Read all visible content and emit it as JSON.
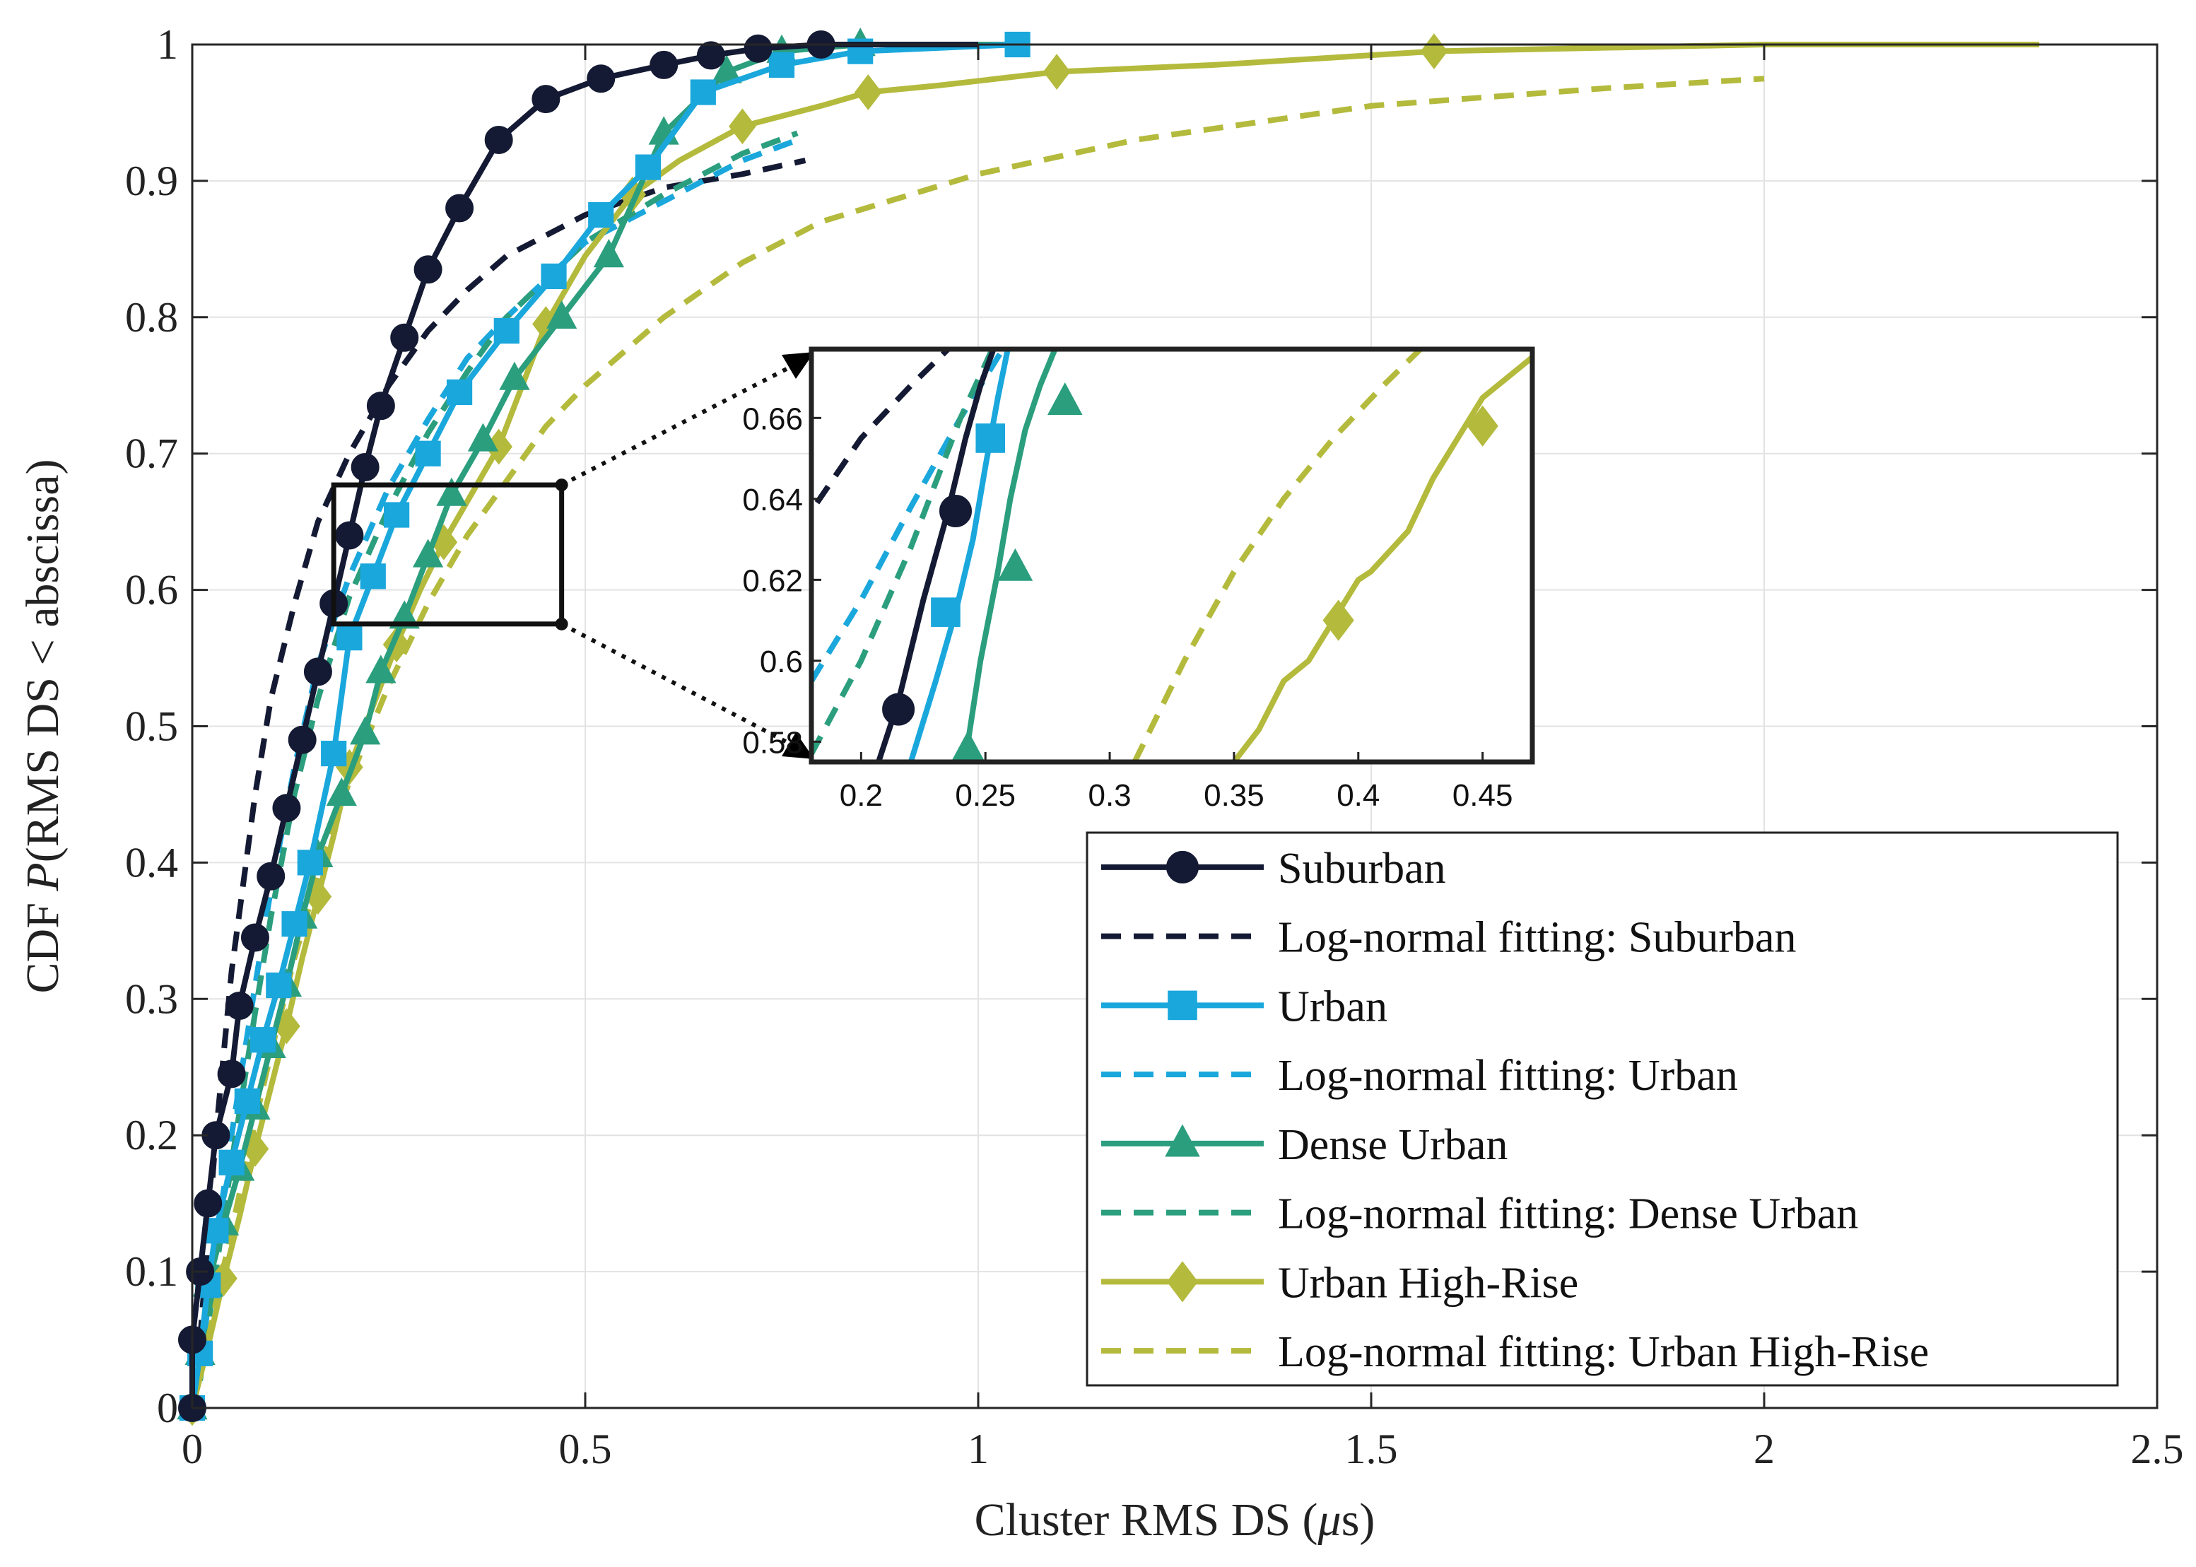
{
  "chart_data": {
    "type": "line",
    "title": "",
    "xlabel_main": "Cluster RMS DS (",
    "xlabel_mu": "μ",
    "xlabel_unit": "s)",
    "ylabel_prefix": "CDF ",
    "ylabel_p": "P",
    "ylabel_suffix": "(RMS DS < abscissa)",
    "xlim": [
      0,
      2.5
    ],
    "ylim": [
      0,
      1
    ],
    "xticks": [
      0,
      0.5,
      1,
      1.5,
      2,
      2.5
    ],
    "xtick_labels": [
      "0",
      "0.5",
      "1",
      "1.5",
      "2",
      "2.5"
    ],
    "yticks": [
      0,
      0.1,
      0.2,
      0.3,
      0.4,
      0.5,
      0.6,
      0.7,
      0.8,
      0.9,
      1
    ],
    "ytick_labels": [
      "0",
      "0.1",
      "0.2",
      "0.3",
      "0.4",
      "0.5",
      "0.6",
      "0.7",
      "0.8",
      "0.9",
      "1"
    ],
    "grid": true,
    "legend_position": "bottom-right",
    "series": [
      {
        "name": "Suburban",
        "style": "solid",
        "marker": "circle",
        "color": "#141a33",
        "x": [
          0.0,
          0.0,
          0.01,
          0.02,
          0.03,
          0.05,
          0.06,
          0.08,
          0.1,
          0.12,
          0.14,
          0.16,
          0.18,
          0.2,
          0.22,
          0.24,
          0.27,
          0.3,
          0.34,
          0.39,
          0.45,
          0.52,
          0.6,
          0.66,
          0.72,
          0.8,
          1.0
        ],
        "y": [
          0.0,
          0.05,
          0.1,
          0.15,
          0.2,
          0.245,
          0.295,
          0.345,
          0.39,
          0.44,
          0.49,
          0.54,
          0.59,
          0.64,
          0.69,
          0.735,
          0.785,
          0.835,
          0.88,
          0.93,
          0.96,
          0.975,
          0.985,
          0.992,
          0.997,
          1.0,
          1.0
        ]
      },
      {
        "name": "Log-normal fitting: Suburban",
        "style": "dashed",
        "marker": "none",
        "color": "#141a33",
        "x": [
          0.01,
          0.03,
          0.05,
          0.08,
          0.1,
          0.13,
          0.16,
          0.2,
          0.25,
          0.3,
          0.35,
          0.4,
          0.5,
          0.6,
          0.7,
          0.78
        ],
        "y": [
          0.05,
          0.2,
          0.32,
          0.45,
          0.52,
          0.59,
          0.65,
          0.7,
          0.75,
          0.79,
          0.82,
          0.845,
          0.875,
          0.895,
          0.905,
          0.915
        ]
      },
      {
        "name": "Urban",
        "style": "solid",
        "marker": "square",
        "color": "#1aa7dc",
        "x": [
          0.0,
          0.01,
          0.02,
          0.03,
          0.05,
          0.07,
          0.09,
          0.11,
          0.13,
          0.15,
          0.18,
          0.2,
          0.23,
          0.26,
          0.3,
          0.34,
          0.4,
          0.46,
          0.52,
          0.58,
          0.65,
          0.75,
          0.85,
          1.05
        ],
        "y": [
          0.0,
          0.04,
          0.09,
          0.13,
          0.18,
          0.225,
          0.27,
          0.31,
          0.355,
          0.4,
          0.48,
          0.565,
          0.61,
          0.655,
          0.7,
          0.745,
          0.79,
          0.83,
          0.875,
          0.91,
          0.965,
          0.985,
          0.995,
          1.0
        ]
      },
      {
        "name": "Log-normal fitting: Urban",
        "style": "dashed",
        "marker": "none",
        "color": "#1aa7dc",
        "x": [
          0.01,
          0.03,
          0.05,
          0.08,
          0.1,
          0.13,
          0.16,
          0.2,
          0.25,
          0.3,
          0.35,
          0.4,
          0.5,
          0.6,
          0.7,
          0.77
        ],
        "y": [
          0.03,
          0.12,
          0.2,
          0.31,
          0.38,
          0.47,
          0.545,
          0.61,
          0.675,
          0.725,
          0.77,
          0.8,
          0.855,
          0.885,
          0.915,
          0.93
        ]
      },
      {
        "name": "Dense Urban",
        "style": "solid",
        "marker": "triangle",
        "color": "#2b9e7e",
        "x": [
          0.0,
          0.01,
          0.02,
          0.04,
          0.06,
          0.08,
          0.1,
          0.12,
          0.14,
          0.16,
          0.19,
          0.22,
          0.24,
          0.27,
          0.3,
          0.33,
          0.37,
          0.41,
          0.47,
          0.53,
          0.6,
          0.68,
          0.75,
          0.85,
          1.05
        ],
        "y": [
          0.0,
          0.04,
          0.09,
          0.135,
          0.175,
          0.22,
          0.265,
          0.31,
          0.36,
          0.405,
          0.45,
          0.495,
          0.54,
          0.58,
          0.625,
          0.67,
          0.71,
          0.755,
          0.8,
          0.845,
          0.935,
          0.98,
          0.995,
          1.0,
          1.0
        ]
      },
      {
        "name": "Log-normal fitting: Dense Urban",
        "style": "dashed",
        "marker": "none",
        "color": "#2b9e7e",
        "x": [
          0.01,
          0.03,
          0.05,
          0.08,
          0.1,
          0.13,
          0.16,
          0.2,
          0.25,
          0.3,
          0.35,
          0.4,
          0.5,
          0.6,
          0.7,
          0.77
        ],
        "y": [
          0.02,
          0.1,
          0.18,
          0.29,
          0.36,
          0.45,
          0.52,
          0.595,
          0.66,
          0.715,
          0.76,
          0.8,
          0.855,
          0.89,
          0.92,
          0.935
        ]
      },
      {
        "name": "Urban High-Rise",
        "style": "solid",
        "marker": "diamond",
        "color": "#b4ba3c",
        "x": [
          0.0,
          0.02,
          0.04,
          0.06,
          0.08,
          0.1,
          0.12,
          0.14,
          0.16,
          0.18,
          0.2,
          0.23,
          0.26,
          0.29,
          0.32,
          0.35,
          0.39,
          0.42,
          0.45,
          0.5,
          0.56,
          0.62,
          0.7,
          0.8,
          0.86,
          0.95,
          1.1,
          1.3,
          1.58,
          2.0,
          2.2,
          2.35
        ],
        "y": [
          0.0,
          0.045,
          0.095,
          0.14,
          0.19,
          0.235,
          0.28,
          0.33,
          0.375,
          0.42,
          0.47,
          0.515,
          0.56,
          0.6,
          0.635,
          0.665,
          0.705,
          0.75,
          0.795,
          0.845,
          0.89,
          0.915,
          0.94,
          0.955,
          0.965,
          0.97,
          0.98,
          0.985,
          0.995,
          1.0,
          1.0,
          1.0
        ]
      },
      {
        "name": "Log-normal fitting: Urban High-Rise",
        "style": "dashed",
        "marker": "none",
        "color": "#b4ba3c",
        "x": [
          0.02,
          0.05,
          0.08,
          0.1,
          0.13,
          0.16,
          0.2,
          0.25,
          0.3,
          0.35,
          0.4,
          0.45,
          0.5,
          0.6,
          0.7,
          0.8,
          1.0,
          1.2,
          1.5,
          1.8,
          2.0
        ],
        "y": [
          0.05,
          0.13,
          0.21,
          0.26,
          0.33,
          0.39,
          0.46,
          0.53,
          0.59,
          0.64,
          0.68,
          0.72,
          0.75,
          0.8,
          0.84,
          0.87,
          0.905,
          0.93,
          0.955,
          0.968,
          0.975
        ]
      }
    ],
    "inset": {
      "xlim": [
        0.18,
        0.47
      ],
      "ylim": [
        0.575,
        0.677
      ],
      "xticks": [
        0.2,
        0.25,
        0.3,
        0.35,
        0.4,
        0.45
      ],
      "xtick_labels": [
        "0.2",
        "0.25",
        "0.3",
        "0.35",
        "0.4",
        "0.45"
      ],
      "yticks": [
        0.58,
        0.6,
        0.62,
        0.64,
        0.66
      ],
      "ytick_labels": [
        "0.58",
        "0.6",
        "0.62",
        "0.64",
        "0.66"
      ],
      "series": [
        {
          "ref": "Log-normal fitting: Suburban",
          "x": [
            0.16,
            0.18,
            0.2,
            0.22,
            0.24
          ],
          "y": [
            0.61,
            0.637,
            0.655,
            0.668,
            0.68
          ]
        },
        {
          "ref": "Log-normal fitting: Urban",
          "x": [
            0.18,
            0.2,
            0.22,
            0.24,
            0.26
          ],
          "y": [
            0.595,
            0.615,
            0.638,
            0.66,
            0.68
          ]
        },
        {
          "ref": "Log-normal fitting: Dense Urban",
          "x": [
            0.18,
            0.2,
            0.22,
            0.24,
            0.255
          ],
          "y": [
            0.577,
            0.6,
            0.628,
            0.66,
            0.68
          ]
        },
        {
          "ref": "Suburban",
          "x": [
            0.207,
            0.215,
            0.225,
            0.235,
            0.242,
            0.248,
            0.255
          ],
          "y": [
            0.575,
            0.59,
            0.615,
            0.637,
            0.655,
            0.668,
            0.68
          ]
        },
        {
          "ref": "Urban",
          "x": [
            0.22,
            0.23,
            0.238,
            0.245,
            0.25,
            0.255,
            0.26
          ],
          "y": [
            0.575,
            0.595,
            0.612,
            0.63,
            0.648,
            0.665,
            0.68
          ]
        },
        {
          "ref": "Dense Urban",
          "x": [
            0.24,
            0.243,
            0.248,
            0.255,
            0.26,
            0.266,
            0.272,
            0.28
          ],
          "y": [
            0.575,
            0.58,
            0.6,
            0.622,
            0.64,
            0.657,
            0.668,
            0.68
          ]
        },
        {
          "ref": "Log-normal fitting: Urban High-Rise",
          "x": [
            0.31,
            0.33,
            0.35,
            0.37,
            0.39,
            0.41,
            0.43
          ],
          "y": [
            0.575,
            0.6,
            0.622,
            0.64,
            0.655,
            0.668,
            0.68
          ]
        },
        {
          "ref": "Urban High-Rise",
          "x": [
            0.35,
            0.36,
            0.37,
            0.38,
            0.39,
            0.4,
            0.405,
            0.42,
            0.43,
            0.45,
            0.47
          ],
          "y": [
            0.575,
            0.583,
            0.595,
            0.6,
            0.61,
            0.62,
            0.622,
            0.632,
            0.645,
            0.665,
            0.675
          ]
        }
      ],
      "markers": [
        {
          "ref": "Suburban",
          "x": [
            0.215,
            0.238
          ],
          "y": [
            0.588,
            0.637
          ]
        },
        {
          "ref": "Urban",
          "x": [
            0.234,
            0.252
          ],
          "y": [
            0.612,
            0.655
          ]
        },
        {
          "ref": "Dense Urban",
          "x": [
            0.243,
            0.262,
            0.282
          ],
          "y": [
            0.578,
            0.623,
            0.664
          ]
        },
        {
          "ref": "Urban High-Rise",
          "x": [
            0.392,
            0.45
          ],
          "y": [
            0.61,
            0.658
          ]
        }
      ]
    },
    "zoom_region": {
      "x": [
        0.18,
        0.47
      ],
      "y": [
        0.575,
        0.677
      ]
    }
  }
}
